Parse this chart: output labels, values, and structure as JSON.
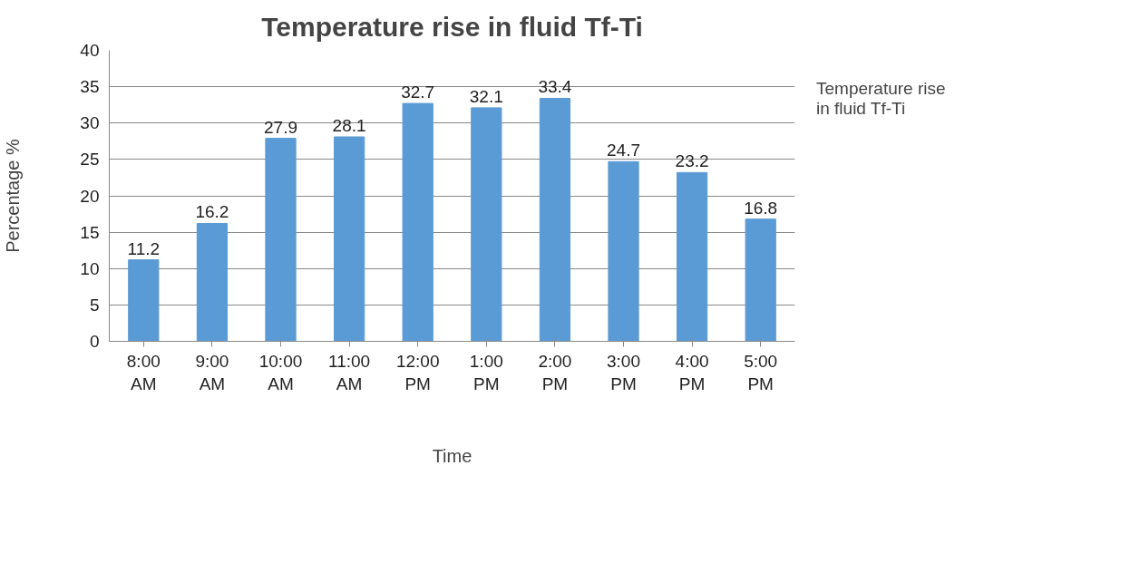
{
  "chart_data": {
    "type": "bar",
    "title": "Temperature rise in fluid Tf-Ti",
    "xlabel": "Time",
    "ylabel": "Percentage %",
    "categories": [
      "8:00 AM",
      "9:00 AM",
      "10:00 AM",
      "11:00 AM",
      "12:00 PM",
      "1:00 PM",
      "2:00 PM",
      "3:00 PM",
      "4:00 PM",
      "5:00 PM"
    ],
    "series": [
      {
        "name": "Temperature rise in fluid Tf-Ti",
        "color": "#5b9bd5",
        "values": [
          11.2,
          16.2,
          27.9,
          28.1,
          32.7,
          32.1,
          33.4,
          24.7,
          23.2,
          16.8
        ]
      }
    ],
    "ylim": [
      0,
      40
    ],
    "yticks": [
      0,
      5,
      10,
      15,
      20,
      25,
      30,
      35,
      40
    ],
    "grid": "y",
    "legend": "right",
    "data_labels": true
  }
}
